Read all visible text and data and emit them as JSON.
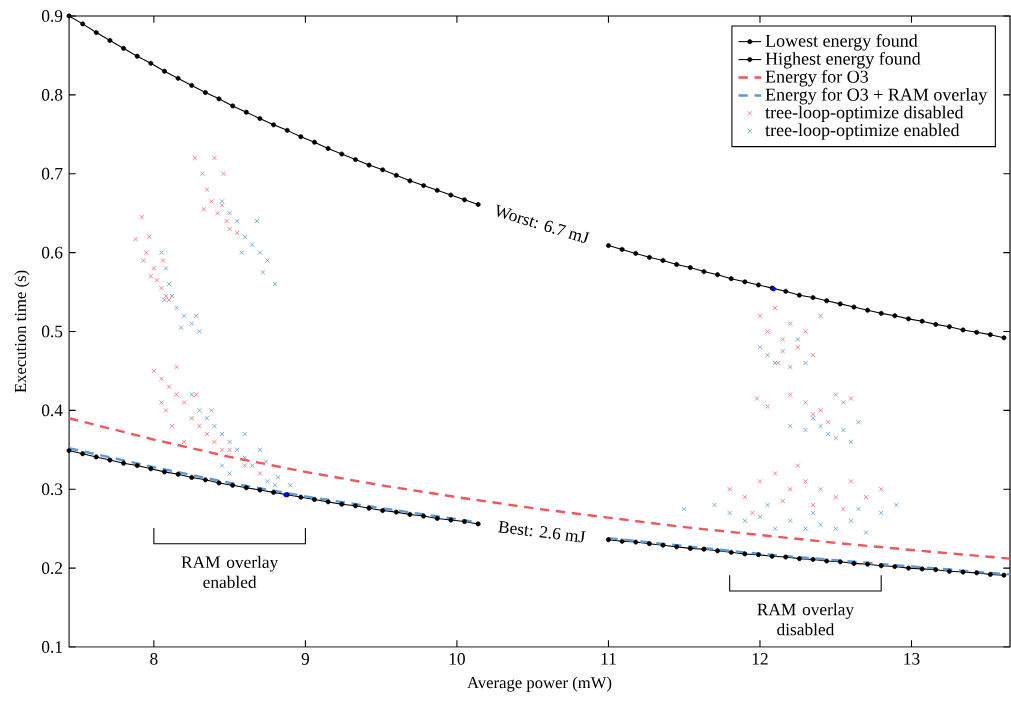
{
  "chart_data": {
    "type": "line",
    "xlabel": "Average power (mW)",
    "ylabel": "Execution time (s)",
    "xlim": [
      7.44,
      13.65
    ],
    "ylim": [
      0.1,
      0.9
    ],
    "xticks": [
      8,
      9,
      10,
      11,
      12,
      13
    ],
    "yticks": [
      0.1,
      0.2,
      0.3,
      0.4,
      0.5,
      0.6,
      0.7,
      0.8,
      0.9
    ],
    "grid": false,
    "legend": "top right",
    "series": [
      {
        "name": "Lowest energy found",
        "color": "#000000",
        "marker": "circle",
        "line_style": "solid",
        "x": [
          7.44,
          7.53,
          7.62,
          7.71,
          7.8,
          7.89,
          7.98,
          8.07,
          8.16,
          8.25,
          8.34,
          8.43,
          8.52,
          8.61,
          8.7,
          8.79,
          8.88,
          8.97,
          9.06,
          9.15,
          9.24,
          9.33,
          9.42,
          9.51,
          9.6,
          9.69,
          9.78,
          9.87,
          9.96,
          10.05,
          10.14,
          10.6,
          11.0,
          11.09,
          11.18,
          11.27,
          11.36,
          11.45,
          11.54,
          11.63,
          11.72,
          11.81,
          11.9,
          11.99,
          12.08,
          12.17,
          12.26,
          12.35,
          12.44,
          12.53,
          12.62,
          12.71,
          12.8,
          12.89,
          12.98,
          13.07,
          13.16,
          13.25,
          13.34,
          13.43,
          13.52,
          13.61
        ],
        "values": [
          0.349,
          0.345,
          0.341,
          0.337,
          0.333,
          0.33,
          0.326,
          0.322,
          0.319,
          0.315,
          0.312,
          0.308,
          0.305,
          0.302,
          0.299,
          0.296,
          0.293,
          0.29,
          0.287,
          0.284,
          0.281,
          0.279,
          0.276,
          0.273,
          0.271,
          0.268,
          0.266,
          0.263,
          0.261,
          0.259,
          0.256,
          null,
          0.236,
          0.234,
          0.233,
          0.231,
          0.229,
          0.227,
          0.225,
          0.224,
          0.222,
          0.22,
          0.218,
          0.217,
          0.215,
          0.214,
          0.212,
          0.211,
          0.209,
          0.208,
          0.206,
          0.205,
          0.203,
          0.202,
          0.2,
          0.199,
          0.198,
          0.196,
          0.195,
          0.194,
          0.192,
          0.191
        ]
      },
      {
        "name": "Highest energy found",
        "color": "#000000",
        "marker": "circle",
        "line_style": "solid",
        "x": [
          7.44,
          7.53,
          7.62,
          7.71,
          7.8,
          7.89,
          7.98,
          8.07,
          8.16,
          8.25,
          8.34,
          8.43,
          8.52,
          8.61,
          8.7,
          8.79,
          8.88,
          8.97,
          9.06,
          9.15,
          9.24,
          9.33,
          9.42,
          9.51,
          9.6,
          9.69,
          9.78,
          9.87,
          9.96,
          10.05,
          10.14,
          10.6,
          11.0,
          11.09,
          11.18,
          11.27,
          11.36,
          11.45,
          11.54,
          11.63,
          11.72,
          11.81,
          11.9,
          11.99,
          12.08,
          12.17,
          12.26,
          12.35,
          12.44,
          12.53,
          12.62,
          12.71,
          12.8,
          12.89,
          12.98,
          13.07,
          13.16,
          13.25,
          13.34,
          13.43,
          13.52,
          13.61
        ],
        "values": [
          0.9,
          0.89,
          0.879,
          0.869,
          0.859,
          0.849,
          0.84,
          0.83,
          0.821,
          0.812,
          0.803,
          0.795,
          0.786,
          0.778,
          0.77,
          0.762,
          0.755,
          0.747,
          0.74,
          0.732,
          0.725,
          0.718,
          0.711,
          0.705,
          0.698,
          0.691,
          0.685,
          0.679,
          0.673,
          0.667,
          0.661,
          null,
          0.609,
          0.604,
          0.599,
          0.594,
          0.59,
          0.585,
          0.581,
          0.576,
          0.572,
          0.567,
          0.563,
          0.559,
          0.555,
          0.551,
          0.546,
          0.543,
          0.539,
          0.535,
          0.531,
          0.527,
          0.523,
          0.52,
          0.516,
          0.513,
          0.509,
          0.506,
          0.502,
          0.499,
          0.496,
          0.492
        ]
      },
      {
        "name": "Energy for O3",
        "color": "#f0565c",
        "marker": "none",
        "line_style": "dashed",
        "x": [
          7.44,
          8,
          8.5,
          9,
          9.5,
          10,
          10.5,
          11,
          11.5,
          12,
          12.5,
          13,
          13.65
        ],
        "values": [
          0.39,
          0.363,
          0.341,
          0.322,
          0.305,
          0.29,
          0.276,
          0.264,
          0.252,
          0.242,
          0.232,
          0.223,
          0.212
        ]
      },
      {
        "name": "Energy for O3 + RAM overlay",
        "color": "#5b9bd5",
        "marker": "none",
        "line_style": "dashed",
        "x": [
          7.44,
          8,
          8.5,
          9,
          9.5,
          10,
          10.14,
          10.5,
          11,
          11.5,
          12,
          12.5,
          13,
          13.65
        ],
        "values": [
          0.352,
          0.328,
          0.308,
          0.291,
          0.276,
          0.262,
          0.258,
          null,
          0.238,
          0.228,
          0.218,
          0.21,
          0.202,
          0.192
        ]
      },
      {
        "name": "tree-loop-optimize disabled",
        "type": "scatter",
        "color": "#f26a70",
        "marker": "cross",
        "x": [
          7.88,
          7.92,
          7.95,
          7.97,
          8.0,
          8.02,
          7.98,
          8.05,
          8.08,
          8.1,
          7.93,
          8.06,
          8.27,
          8.32,
          8.35,
          8.4,
          8.38,
          8.42,
          8.45,
          8.48,
          8.5,
          8.55,
          8.33,
          8.46,
          8.0,
          8.05,
          8.1,
          8.15,
          8.2,
          8.08,
          8.12,
          8.25,
          8.3,
          8.35,
          8.4,
          8.45,
          8.2,
          8.5,
          8.6,
          8.15,
          8.28,
          8.05,
          8.38,
          8.7,
          12.0,
          12.05,
          12.1,
          12.15,
          12.2,
          12.25,
          12.3,
          12.35,
          12.4,
          12.12,
          11.98,
          12.05,
          12.2,
          12.3,
          12.35,
          12.4,
          12.5,
          12.55,
          12.45,
          12.6,
          11.8,
          11.9,
          12.0,
          12.1,
          12.2,
          12.3,
          12.4,
          12.5,
          12.6,
          12.7,
          12.15,
          12.35,
          12.55,
          12.25,
          11.95,
          12.8
        ],
        "values": [
          0.617,
          0.645,
          0.6,
          0.62,
          0.58,
          0.565,
          0.57,
          0.555,
          0.545,
          0.54,
          0.59,
          0.59,
          0.72,
          0.7,
          0.68,
          0.72,
          0.665,
          0.65,
          0.66,
          0.64,
          0.63,
          0.625,
          0.655,
          0.7,
          0.45,
          0.44,
          0.43,
          0.42,
          0.41,
          0.4,
          0.38,
          0.39,
          0.38,
          0.37,
          0.36,
          0.35,
          0.36,
          0.35,
          0.33,
          0.455,
          0.42,
          0.41,
          0.4,
          0.32,
          0.52,
          0.5,
          0.53,
          0.49,
          0.51,
          0.48,
          0.5,
          0.47,
          0.52,
          0.46,
          0.415,
          0.405,
          0.42,
          0.41,
          0.395,
          0.4,
          0.42,
          0.41,
          0.385,
          0.415,
          0.3,
          0.29,
          0.31,
          0.32,
          0.3,
          0.31,
          0.3,
          0.29,
          0.31,
          0.29,
          0.285,
          0.28,
          0.275,
          0.33,
          0.27,
          0.3
        ]
      },
      {
        "name": "tree-loop-optimize enabled",
        "type": "scatter",
        "color": "#5b9bd5",
        "marker": "cross",
        "x": [
          8.05,
          8.08,
          8.1,
          8.12,
          8.15,
          8.2,
          8.25,
          8.3,
          8.18,
          8.28,
          8.07,
          8.45,
          8.5,
          8.55,
          8.6,
          8.65,
          8.7,
          8.75,
          8.58,
          8.72,
          8.8,
          8.68,
          8.3,
          8.35,
          8.4,
          8.45,
          8.5,
          8.55,
          8.6,
          8.65,
          8.74,
          8.75,
          8.8,
          8.82,
          8.9,
          8.45,
          8.6,
          8.25,
          8.7,
          8.5,
          12.0,
          12.05,
          12.1,
          12.15,
          12.2,
          12.25,
          12.3,
          12.2,
          12.3,
          12.35,
          12.4,
          12.45,
          12.5,
          12.55,
          12.6,
          12.65,
          11.5,
          11.7,
          11.8,
          11.9,
          12.0,
          12.1,
          12.2,
          12.3,
          12.4,
          12.5,
          12.6,
          12.7,
          12.8,
          12.9,
          12.05,
          12.35,
          12.65
        ],
        "values": [
          0.6,
          0.58,
          0.56,
          0.545,
          0.53,
          0.52,
          0.51,
          0.5,
          0.505,
          0.52,
          0.54,
          0.665,
          0.65,
          0.64,
          0.62,
          0.61,
          0.6,
          0.59,
          0.6,
          0.575,
          0.56,
          0.64,
          0.4,
          0.39,
          0.38,
          0.37,
          0.36,
          0.35,
          0.34,
          0.33,
          0.335,
          0.31,
          0.305,
          0.315,
          0.305,
          0.33,
          0.37,
          0.42,
          0.35,
          0.32,
          0.48,
          0.47,
          0.46,
          0.475,
          0.455,
          0.49,
          0.46,
          0.38,
          0.375,
          0.39,
          0.38,
          0.37,
          0.365,
          0.375,
          0.36,
          0.385,
          0.275,
          0.28,
          0.27,
          0.26,
          0.265,
          0.25,
          0.26,
          0.25,
          0.255,
          0.25,
          0.26,
          0.245,
          0.27,
          0.28,
          0.28,
          0.27,
          0.275
        ]
      },
      {
        "type": "scatter",
        "color": "#0000ff",
        "marker": "circle",
        "x": [
          8.87,
          12.09
        ],
        "values": [
          0.293,
          0.554
        ]
      }
    ],
    "annotations": [
      "Worst: 6.7 mJ",
      "Best: 2.6 mJ",
      "RAM overlay enabled",
      "RAM overlay disabled"
    ]
  }
}
